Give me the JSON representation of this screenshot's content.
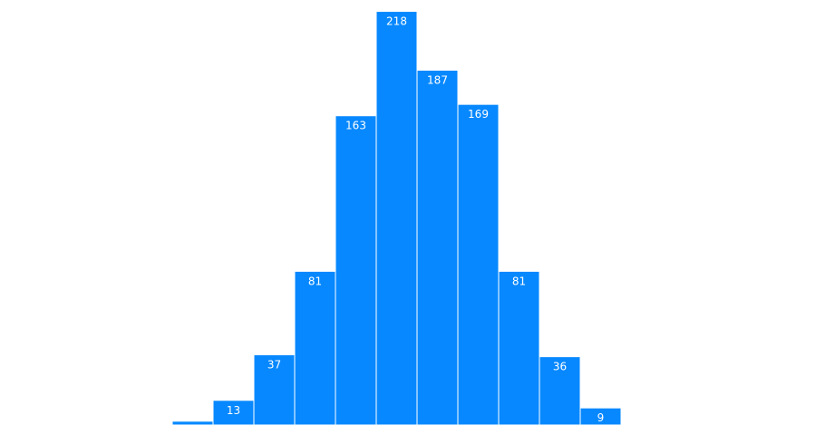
{
  "chart_data": {
    "type": "bar",
    "title": "",
    "xlabel": "",
    "ylabel": "",
    "values": [
      2,
      13,
      37,
      81,
      163,
      218,
      187,
      169,
      81,
      36,
      9
    ],
    "data_labels": [
      "",
      "13",
      "37",
      "81",
      "163",
      "218",
      "187",
      "169",
      "81",
      "36",
      "9"
    ],
    "ylim": [
      0,
      224
    ],
    "grid": false,
    "legend": "none",
    "bar_color": "#0788FF",
    "label_color": "#FFFFFF",
    "edge_color": "#FFFFFF"
  }
}
